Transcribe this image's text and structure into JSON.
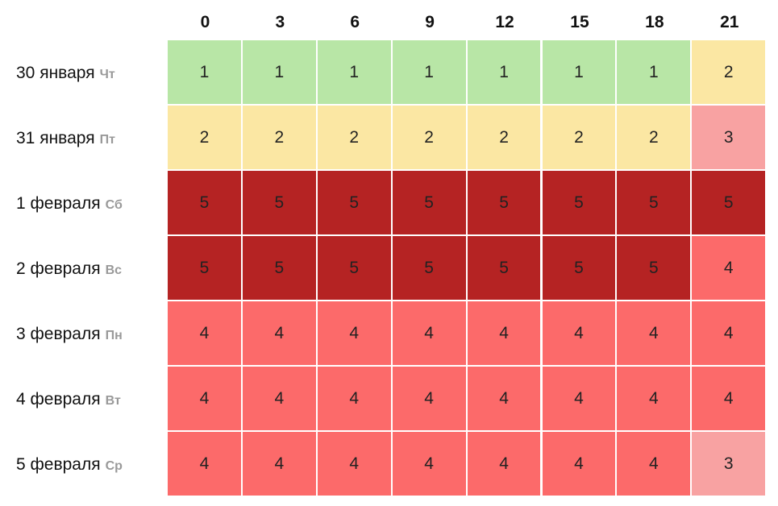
{
  "table": {
    "columns": [
      0,
      3,
      6,
      9,
      12,
      15,
      18,
      21
    ],
    "rows": [
      {
        "date": "30 января",
        "weekday": "Чт",
        "values": [
          1,
          1,
          1,
          1,
          1,
          1,
          1,
          2
        ]
      },
      {
        "date": "31 января",
        "weekday": "Пт",
        "values": [
          2,
          2,
          2,
          2,
          2,
          2,
          2,
          3
        ]
      },
      {
        "date": "1 февраля",
        "weekday": "Сб",
        "values": [
          5,
          5,
          5,
          5,
          5,
          5,
          5,
          5
        ]
      },
      {
        "date": "2 февраля",
        "weekday": "Вс",
        "values": [
          5,
          5,
          5,
          5,
          5,
          5,
          5,
          4
        ]
      },
      {
        "date": "3 февраля",
        "weekday": "Пн",
        "values": [
          4,
          4,
          4,
          4,
          4,
          4,
          4,
          4
        ]
      },
      {
        "date": "4 февраля",
        "weekday": "Вт",
        "values": [
          4,
          4,
          4,
          4,
          4,
          4,
          4,
          4
        ]
      },
      {
        "date": "5 февраля",
        "weekday": "Ср",
        "values": [
          4,
          4,
          4,
          4,
          4,
          4,
          4,
          3
        ]
      }
    ],
    "level_colors": {
      "1": "#b8e6a6",
      "2": "#fbe7a3",
      "3": "#f8a2a2",
      "4": "#fc6a6a",
      "5": "#b52323"
    }
  }
}
